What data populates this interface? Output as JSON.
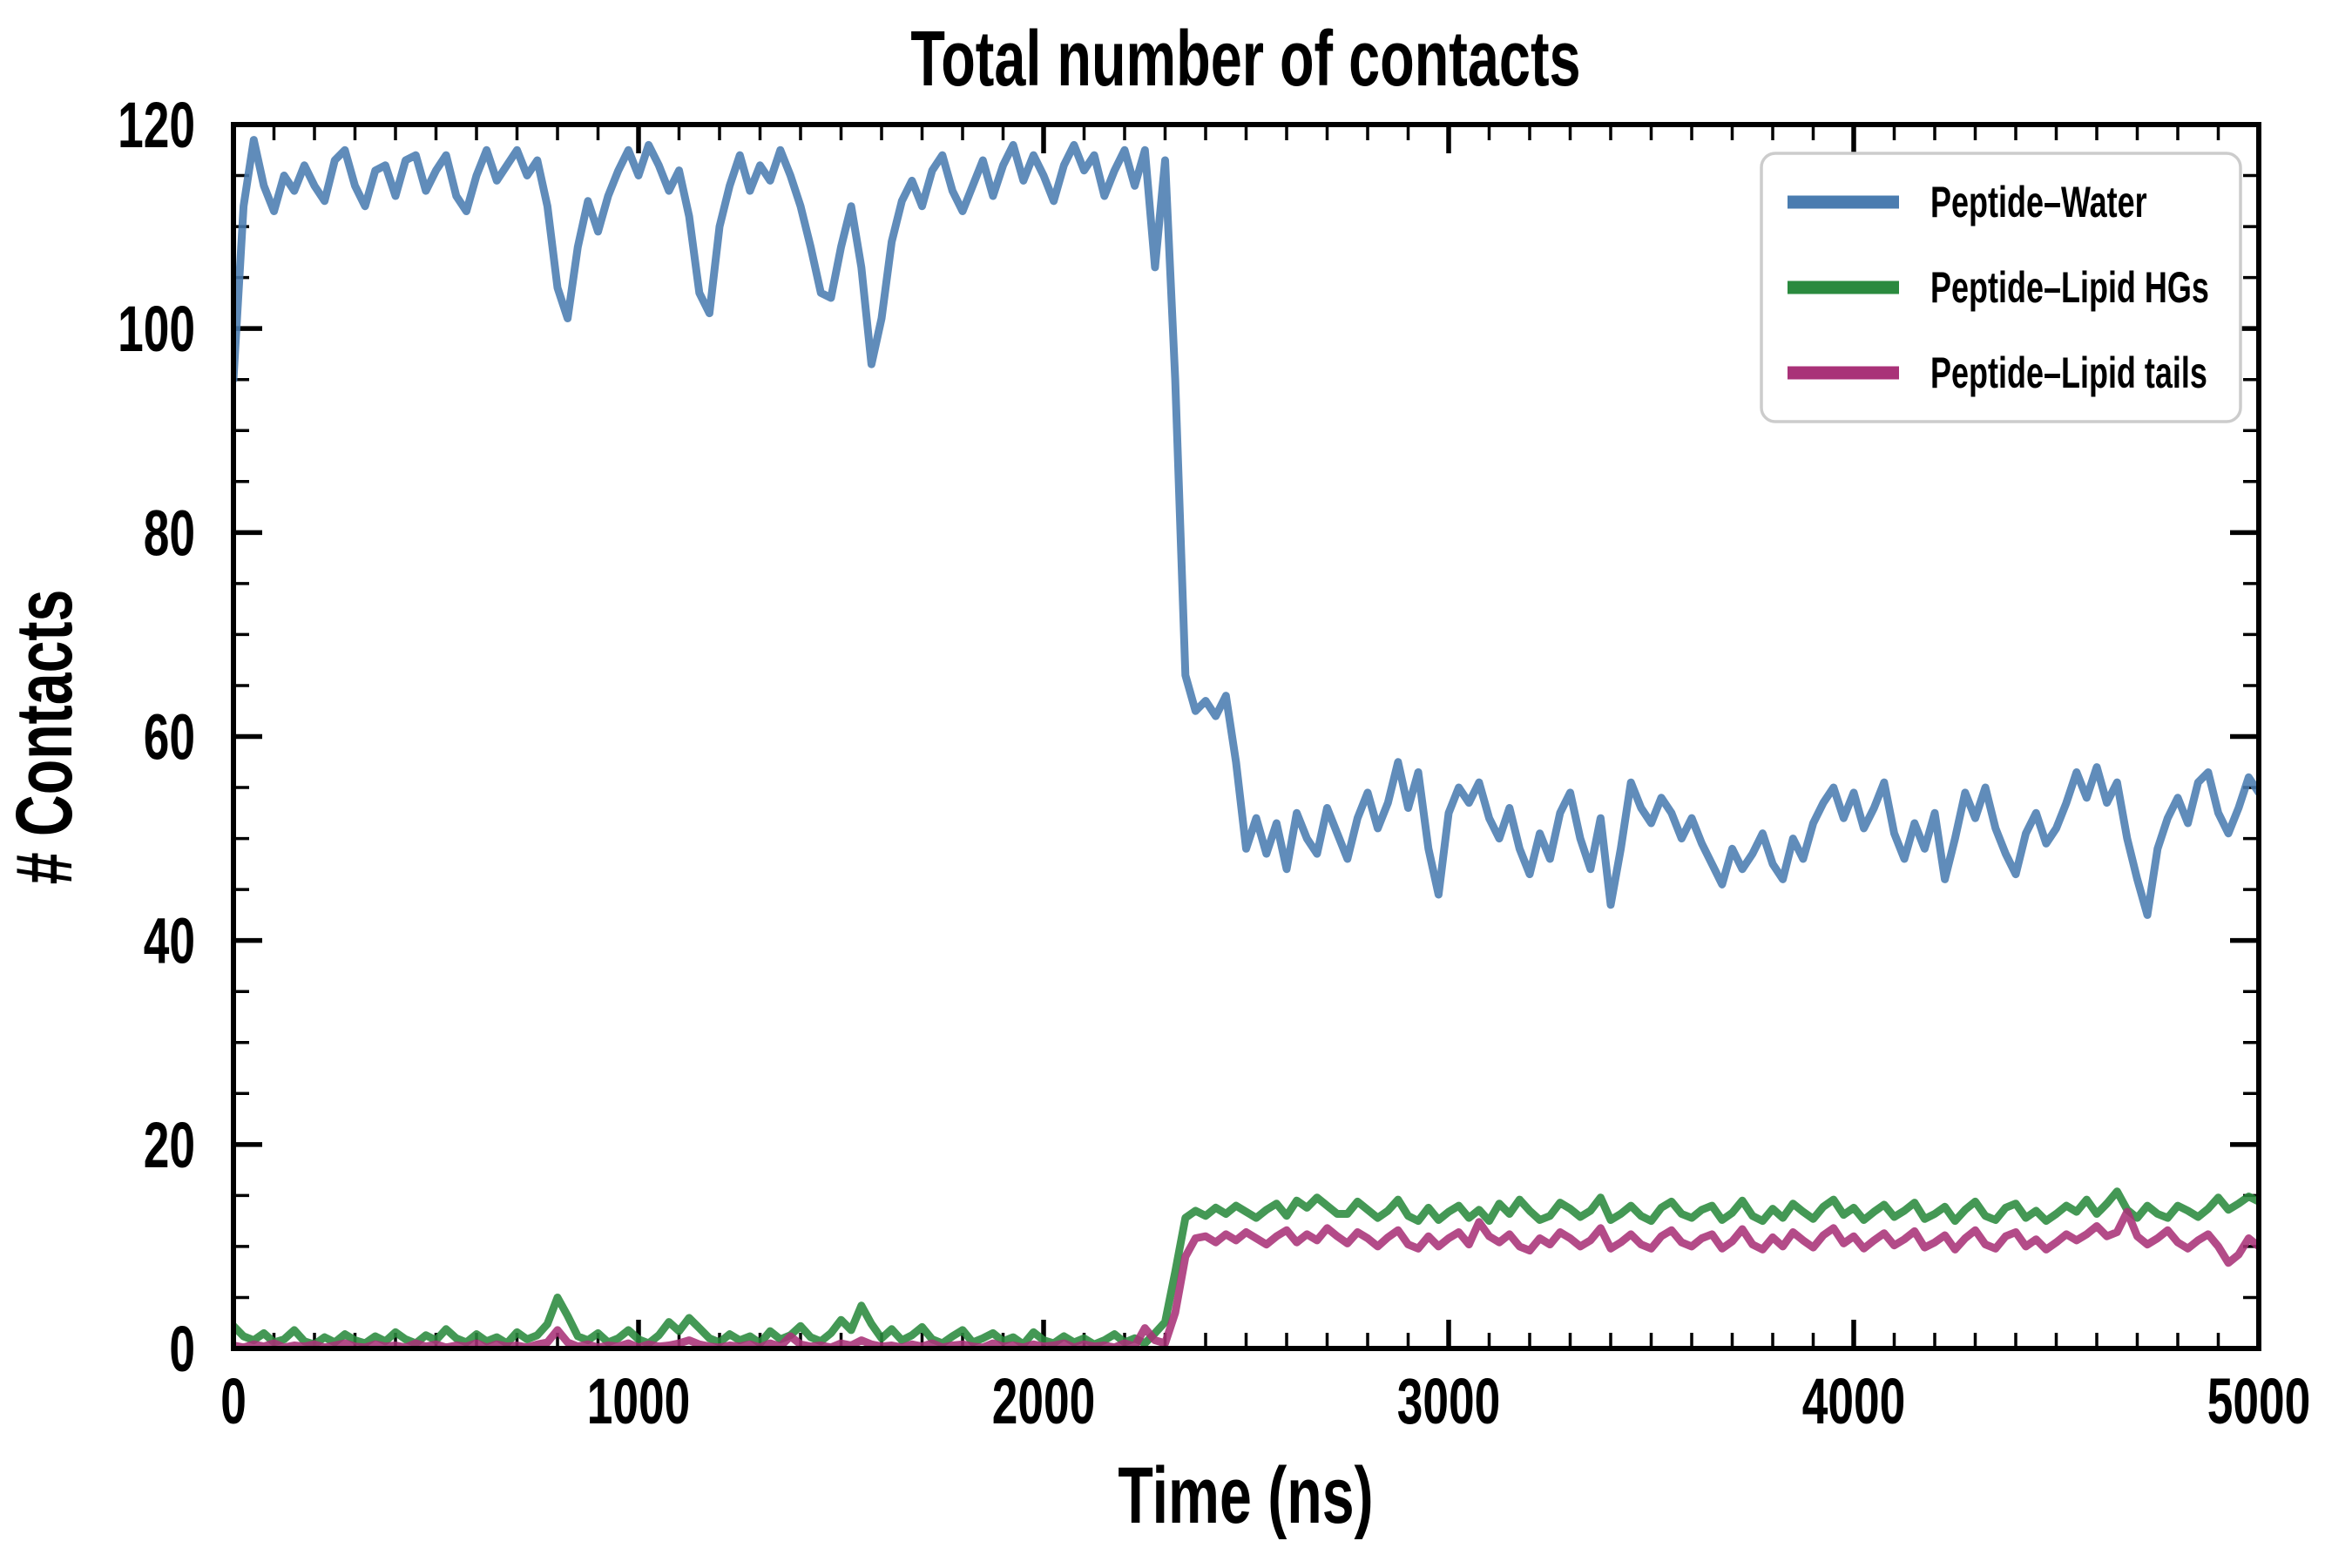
{
  "title": "Total number of contacts",
  "colors": {
    "background": "#ffffff",
    "text": "#000000",
    "axis": "#000000",
    "legend_border": "#cccccc",
    "peptide_water": "#4a7cb0",
    "peptide_lipid_hgs": "#2a8a3e",
    "peptide_lipid_tails": "#a93278"
  },
  "legend": {
    "items": [
      {
        "label": "Peptide–Water",
        "color": "#4a7cb0"
      },
      {
        "label": "Peptide–Lipid HGs",
        "color": "#2a8a3e"
      },
      {
        "label": "Peptide–Lipid tails",
        "color": "#a93278"
      }
    ]
  },
  "chart_data": {
    "type": "line",
    "title": "Total number of contacts",
    "xlabel": "Time (ns)",
    "ylabel": "# Contacts",
    "xlim": [
      0,
      5000
    ],
    "ylim": [
      0,
      120
    ],
    "x_major_ticks": [
      0,
      1000,
      2000,
      3000,
      4000,
      5000
    ],
    "x_minor_step": 100,
    "y_major_ticks": [
      0,
      20,
      40,
      60,
      80,
      100,
      120
    ],
    "y_minor_step": 5,
    "grid": false,
    "legend_position": "upper right",
    "tick_direction": "in",
    "x_step": 25,
    "series": [
      {
        "name": "Peptide–Water",
        "color": "#4a7cb0",
        "values": [
          95,
          112,
          118.5,
          114,
          111.5,
          115,
          113.5,
          116,
          114,
          112.5,
          116.5,
          117.5,
          114,
          112,
          115.5,
          116,
          113,
          116.5,
          117,
          113.5,
          115.5,
          117,
          113,
          111.5,
          115,
          117.5,
          114.5,
          116,
          117.5,
          115,
          116.5,
          112,
          104,
          101,
          108,
          112.5,
          109.5,
          113,
          115.5,
          117.5,
          115,
          118,
          116,
          113.5,
          115.5,
          111,
          103.5,
          101.5,
          110,
          114,
          117,
          113.5,
          116,
          114.5,
          117.5,
          115,
          112,
          108,
          103.5,
          103,
          108,
          112,
          106,
          96.5,
          101,
          108.5,
          112.5,
          114.5,
          112,
          115.5,
          117,
          113.5,
          111.5,
          114,
          116.5,
          113,
          116,
          118,
          114.5,
          117,
          115,
          112.5,
          116,
          118,
          115.5,
          117,
          113,
          115.5,
          117.5,
          114,
          117.5,
          106,
          116.5,
          95,
          66,
          62.5,
          63.5,
          62,
          64,
          57.5,
          49,
          52,
          48.5,
          51.5,
          47,
          52.5,
          50,
          48.5,
          53,
          50.5,
          48,
          52,
          54.5,
          51,
          53.5,
          57.5,
          53,
          56.5,
          49,
          44.5,
          52.5,
          55,
          53.5,
          55.5,
          52,
          50,
          53,
          49,
          46.5,
          50.5,
          48,
          52.5,
          54.5,
          50,
          47,
          52,
          43.5,
          49,
          55.5,
          53,
          51.5,
          54,
          52.5,
          50,
          52,
          49.5,
          47.5,
          45.5,
          49,
          47,
          48.5,
          50.5,
          47.5,
          46,
          50,
          48,
          51.5,
          53.5,
          55,
          52,
          54.5,
          51,
          53,
          55.5,
          50.5,
          48,
          51.5,
          49,
          52.5,
          46,
          50,
          54.5,
          52,
          55,
          51,
          48.5,
          46.5,
          50.5,
          52.5,
          49.5,
          51,
          53.5,
          56.5,
          54,
          57,
          53.5,
          55.5,
          50,
          46,
          42.5,
          49,
          52,
          54,
          51.5,
          55.5,
          56.5,
          52.5,
          50.5,
          53,
          56,
          54.5
        ]
      },
      {
        "name": "Peptide–Lipid HGs",
        "color": "#2a8a3e",
        "values": [
          2.2,
          1.2,
          0.8,
          1.5,
          0.6,
          0.9,
          1.8,
          0.7,
          0.4,
          1.1,
          0.6,
          1.4,
          0.8,
          0.5,
          1.2,
          0.7,
          1.6,
          0.9,
          0.5,
          1.3,
          0.8,
          1.9,
          1.0,
          0.6,
          1.4,
          0.7,
          1.1,
          0.5,
          1.6,
          0.9,
          1.3,
          2.4,
          5.0,
          3.2,
          1.2,
          0.8,
          1.5,
          0.6,
          1.0,
          1.8,
          0.9,
          0.5,
          1.3,
          2.6,
          1.7,
          3.0,
          2.0,
          1.0,
          0.6,
          1.4,
          0.8,
          1.2,
          0.5,
          1.7,
          0.9,
          1.3,
          2.2,
          1.1,
          0.7,
          1.5,
          2.8,
          1.8,
          4.2,
          2.4,
          1.0,
          1.9,
          0.8,
          1.3,
          2.1,
          0.9,
          0.5,
          1.2,
          1.8,
          0.6,
          1.0,
          1.5,
          0.7,
          1.1,
          0.4,
          1.6,
          0.8,
          0.5,
          1.2,
          0.6,
          1.0,
          0.4,
          0.8,
          1.4,
          0.6,
          1.0,
          0.5,
          1.5,
          2.6,
          7.5,
          12.8,
          13.5,
          13.0,
          13.8,
          13.2,
          14.0,
          13.4,
          12.8,
          13.6,
          14.2,
          13.0,
          14.5,
          13.8,
          14.8,
          14.0,
          13.2,
          13.2,
          14.4,
          13.6,
          12.8,
          13.5,
          14.6,
          13.0,
          12.5,
          13.8,
          12.6,
          13.4,
          14.0,
          12.8,
          13.6,
          12.5,
          14.2,
          13.2,
          14.6,
          13.5,
          12.6,
          13.0,
          14.3,
          13.7,
          12.9,
          13.5,
          14.8,
          12.6,
          13.2,
          14.0,
          13.0,
          12.5,
          13.8,
          14.4,
          13.2,
          12.8,
          13.6,
          14.0,
          12.6,
          13.3,
          14.5,
          13.0,
          12.5,
          13.7,
          12.8,
          14.2,
          13.4,
          12.7,
          13.9,
          14.6,
          13.1,
          13.8,
          12.6,
          13.4,
          14.1,
          12.9,
          13.5,
          14.3,
          12.7,
          13.2,
          13.9,
          12.5,
          13.6,
          14.4,
          13.0,
          12.6,
          13.8,
          14.2,
          12.8,
          13.5,
          12.5,
          13.2,
          14.0,
          13.4,
          14.6,
          13.2,
          14.2,
          15.4,
          13.6,
          12.8,
          14.0,
          13.2,
          12.8,
          14.0,
          13.5,
          12.9,
          13.7,
          14.8,
          13.6,
          14.2,
          14.9,
          14.4
        ]
      },
      {
        "name": "Peptide–Lipid tails",
        "color": "#a93278",
        "values": [
          0.3,
          0.1,
          0.4,
          0.2,
          0.5,
          0.1,
          0.3,
          0.2,
          0.4,
          0.1,
          0.3,
          0.5,
          0.2,
          0.1,
          0.4,
          0.2,
          0.3,
          0.1,
          0.5,
          0.2,
          0.4,
          0.1,
          0.3,
          0.2,
          0.5,
          0.1,
          0.4,
          0.2,
          0.3,
          0.1,
          0.4,
          0.6,
          1.8,
          0.6,
          0.2,
          0.4,
          0.1,
          0.3,
          0.2,
          0.5,
          0.1,
          0.4,
          0.2,
          0.3,
          0.5,
          0.8,
          0.4,
          0.2,
          0.1,
          0.3,
          0.2,
          0.4,
          0.1,
          0.5,
          0.2,
          1.2,
          0.4,
          0.2,
          0.3,
          0.1,
          0.5,
          0.3,
          0.8,
          0.4,
          0.2,
          0.3,
          0.1,
          0.4,
          0.2,
          0.5,
          0.1,
          0.3,
          0.4,
          0.2,
          0.1,
          0.5,
          0.2,
          0.3,
          0.1,
          0.4,
          0.2,
          0.3,
          0.5,
          0.1,
          0.4,
          0.2,
          0.3,
          0.1,
          0.5,
          0.2,
          2.0,
          0.8,
          0.5,
          3.5,
          9.0,
          10.8,
          11.0,
          10.4,
          11.2,
          10.6,
          11.4,
          10.8,
          10.2,
          11.0,
          11.6,
          10.4,
          11.2,
          10.6,
          11.8,
          11.0,
          10.3,
          11.4,
          10.8,
          10.0,
          10.9,
          11.6,
          10.2,
          9.8,
          11.0,
          10.0,
          10.8,
          11.4,
          10.2,
          12.4,
          11.0,
          10.4,
          11.2,
          10.0,
          9.6,
          10.8,
          10.2,
          11.4,
          10.8,
          10.0,
          10.6,
          11.8,
          9.8,
          10.4,
          11.2,
          10.2,
          9.8,
          11.0,
          11.6,
          10.4,
          10.0,
          10.8,
          11.2,
          9.8,
          10.5,
          11.7,
          10.2,
          9.7,
          10.9,
          10.0,
          11.4,
          10.6,
          9.9,
          11.1,
          11.8,
          10.3,
          11.0,
          9.8,
          10.6,
          11.3,
          10.1,
          10.7,
          11.5,
          9.9,
          10.4,
          11.1,
          9.7,
          10.8,
          11.6,
          10.2,
          9.8,
          11.0,
          11.4,
          10.0,
          10.7,
          9.7,
          10.4,
          11.2,
          10.6,
          11.2,
          12.0,
          11.0,
          11.4,
          13.4,
          11.0,
          10.2,
          10.8,
          11.6,
          10.4,
          9.8,
          10.6,
          11.2,
          10.0,
          8.4,
          9.2,
          10.8,
          10.0
        ]
      }
    ]
  }
}
